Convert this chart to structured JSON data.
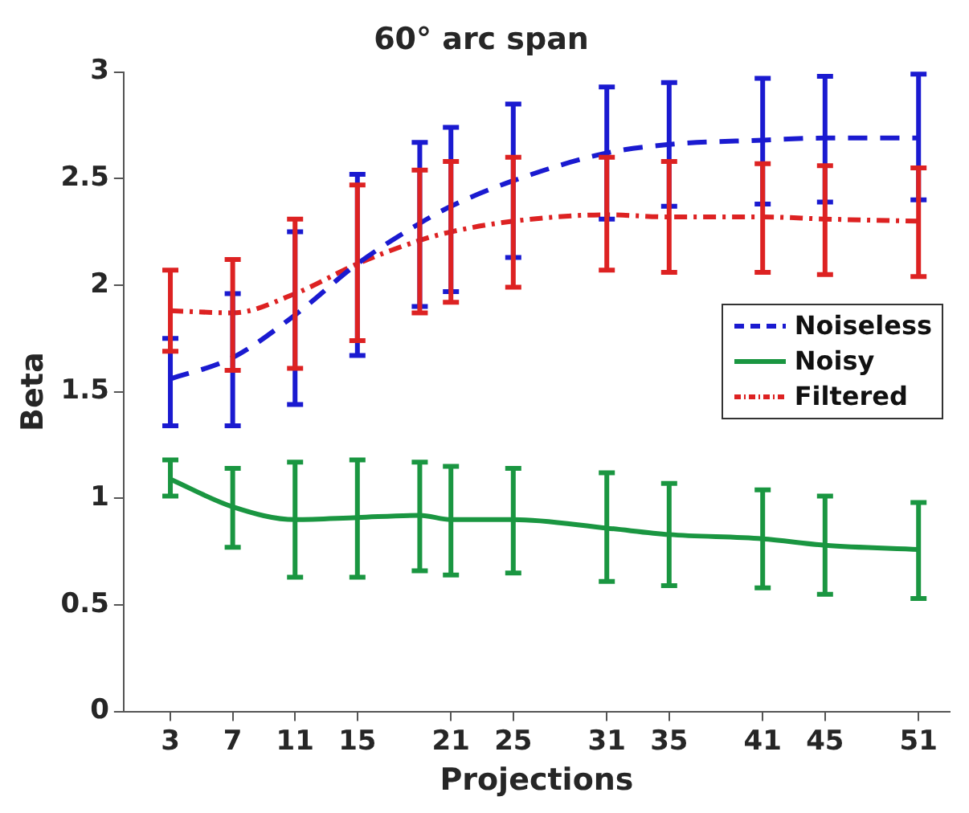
{
  "chart_data": {
    "type": "line",
    "title": "60° arc span",
    "xlabel": "Projections",
    "ylabel": "Beta",
    "x": [
      3,
      7,
      11,
      15,
      19,
      21,
      25,
      31,
      35,
      41,
      45,
      51
    ],
    "xlim": [
      0,
      53
    ],
    "xticks": [
      3,
      7,
      11,
      15,
      21,
      25,
      31,
      35,
      41,
      45,
      51
    ],
    "ylim": [
      0,
      3
    ],
    "yticks": [
      0,
      0.5,
      1,
      1.5,
      2,
      2.5,
      3
    ],
    "grid": false,
    "legend": "right",
    "marker": "none",
    "series": [
      {
        "name": "Noiseless",
        "color": "#1a1ad0",
        "line_style": "dashed",
        "values": [
          1.56,
          1.66,
          1.86,
          2.1,
          2.29,
          2.37,
          2.49,
          2.62,
          2.66,
          2.68,
          2.69,
          2.69
        ],
        "errors": [
          [
            1.34,
            1.75
          ],
          [
            1.34,
            1.96
          ],
          [
            1.44,
            2.25
          ],
          [
            1.67,
            2.52
          ],
          [
            1.9,
            2.67
          ],
          [
            1.97,
            2.74
          ],
          [
            2.13,
            2.85
          ],
          [
            2.31,
            2.93
          ],
          [
            2.37,
            2.95
          ],
          [
            2.38,
            2.97
          ],
          [
            2.39,
            2.98
          ],
          [
            2.4,
            2.99
          ]
        ]
      },
      {
        "name": "Noisy",
        "color": "#1a9641",
        "line_style": "solid",
        "values": [
          1.09,
          0.96,
          0.9,
          0.91,
          0.92,
          0.9,
          0.9,
          0.86,
          0.83,
          0.81,
          0.78,
          0.76
        ],
        "errors": [
          [
            1.01,
            1.18
          ],
          [
            0.77,
            1.14
          ],
          [
            0.63,
            1.17
          ],
          [
            0.63,
            1.18
          ],
          [
            0.66,
            1.17
          ],
          [
            0.64,
            1.15
          ],
          [
            0.65,
            1.14
          ],
          [
            0.61,
            1.12
          ],
          [
            0.59,
            1.07
          ],
          [
            0.58,
            1.04
          ],
          [
            0.55,
            1.01
          ],
          [
            0.53,
            0.98
          ]
        ]
      },
      {
        "name": "Filtered",
        "color": "#dd2222",
        "line_style": "dashdot",
        "values": [
          1.88,
          1.87,
          1.96,
          2.1,
          2.21,
          2.25,
          2.3,
          2.33,
          2.32,
          2.32,
          2.31,
          2.3
        ],
        "errors": [
          [
            1.69,
            2.07
          ],
          [
            1.6,
            2.12
          ],
          [
            1.61,
            2.31
          ],
          [
            1.74,
            2.47
          ],
          [
            1.87,
            2.54
          ],
          [
            1.92,
            2.58
          ],
          [
            1.99,
            2.6
          ],
          [
            2.07,
            2.6
          ],
          [
            2.06,
            2.58
          ],
          [
            2.06,
            2.57
          ],
          [
            2.05,
            2.56
          ],
          [
            2.04,
            2.55
          ]
        ]
      }
    ]
  }
}
